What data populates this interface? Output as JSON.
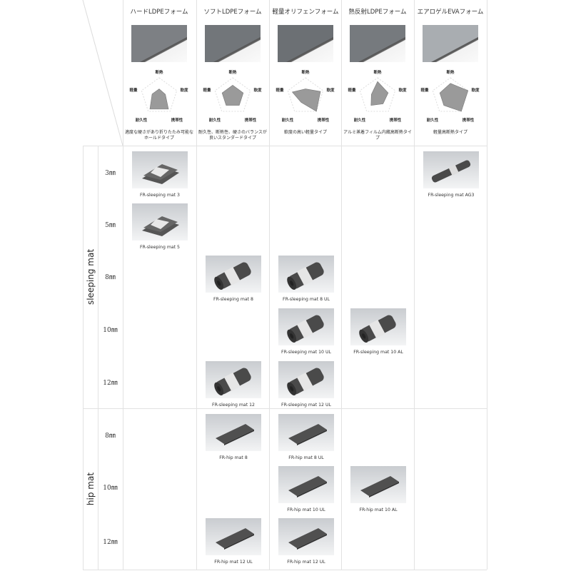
{
  "radar_axes": [
    "断熱",
    "軟度",
    "携帯性",
    "耐久性",
    "軽量"
  ],
  "columns": [
    {
      "title": "ハードLDPEフォーム",
      "description": "適度な硬さがあり折りたたみ可能なホールドタイプ",
      "swatch": "#7d8084",
      "radar": [
        0.4,
        0.35,
        0.85,
        0.85,
        0.4
      ]
    },
    {
      "title": "ソフトLDPEフォーム",
      "description": "耐久性、断熱性、硬さのバランスが良いスタンダードタイプ",
      "swatch": "#72767a",
      "radar": [
        0.6,
        0.6,
        0.6,
        0.6,
        0.6
      ]
    },
    {
      "title": "軽量オリフェンフォーム",
      "description": "軟度の高い軽量タイプ",
      "swatch": "#6c7074",
      "radar": [
        0.4,
        0.85,
        1.0,
        0.4,
        0.75
      ]
    },
    {
      "title": "熱反射LDPEフォーム",
      "description": "アルミ蒸着フィルム内蔵高断熱タイプ",
      "swatch": "#767a7e",
      "radar": [
        0.8,
        0.6,
        0.5,
        0.6,
        0.35
      ]
    },
    {
      "title": "エアロゲルEVAフォーム",
      "description": "軽量高断熱タイプ",
      "swatch": "#a9adb1",
      "radar": [
        0.7,
        1.0,
        1.0,
        0.6,
        0.6
      ]
    }
  ],
  "groups": [
    {
      "label": "sleeping mat",
      "sizes": [
        "3㎜",
        "5㎜",
        "8㎜",
        "10㎜",
        "12㎜"
      ]
    },
    {
      "label": "hip mat",
      "sizes": [
        "8㎜",
        "10㎜",
        "12㎜"
      ]
    }
  ],
  "products": [
    {
      "name": "FR-sleeping mat 3",
      "col": 0,
      "row": 0,
      "kind": "folded"
    },
    {
      "name": "FR-sleeping mat 5",
      "col": 0,
      "row": 1,
      "kind": "folded"
    },
    {
      "name": "FR-sleeping mat AG3",
      "col": 4,
      "row": 0,
      "kind": "roll-thin"
    },
    {
      "name": "FR-sleeping mat 8",
      "col": 1,
      "row": 2,
      "kind": "roll"
    },
    {
      "name": "FR-sleeping mat 8 UL",
      "col": 2,
      "row": 2,
      "kind": "roll"
    },
    {
      "name": "FR-sleeping mat 10 UL",
      "col": 2,
      "row": 3,
      "kind": "roll"
    },
    {
      "name": "FR-sleeping mat 10 AL",
      "col": 3,
      "row": 3,
      "kind": "roll"
    },
    {
      "name": "FR-sleeping mat 12",
      "col": 1,
      "row": 4,
      "kind": "roll"
    },
    {
      "name": "FR-sleeping mat 12 UL",
      "col": 2,
      "row": 4,
      "kind": "roll"
    },
    {
      "name": "FR-hip mat 8",
      "col": 1,
      "row": 5,
      "kind": "sheet"
    },
    {
      "name": "FR-hip mat 8 UL",
      "col": 2,
      "row": 5,
      "kind": "sheet"
    },
    {
      "name": "FR-hip mat 10 UL",
      "col": 2,
      "row": 6,
      "kind": "sheet"
    },
    {
      "name": "FR-hip mat 10 AL",
      "col": 3,
      "row": 6,
      "kind": "sheet"
    },
    {
      "name": "FR-hip mat 12 UL",
      "col": 1,
      "row": 7,
      "kind": "sheet"
    },
    {
      "name": "FR-hip mat 12 UL",
      "col": 2,
      "row": 7,
      "kind": "sheet"
    }
  ]
}
